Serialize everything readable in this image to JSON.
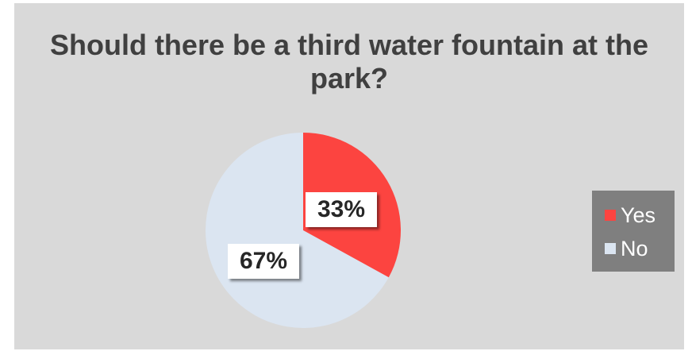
{
  "chart_data": {
    "type": "pie",
    "title": "Should there be a third water fountain at the park?",
    "categories": [
      "Yes",
      "No"
    ],
    "values": [
      33,
      67
    ],
    "data_labels": [
      "33%",
      "67%"
    ],
    "colors": [
      "#fc4440",
      "#dbe5f1"
    ],
    "legend": {
      "position": "right",
      "entries": [
        "Yes",
        "No"
      ]
    },
    "background_color": "#d9d9d9",
    "legend_background_color": "#7f7f7f"
  }
}
